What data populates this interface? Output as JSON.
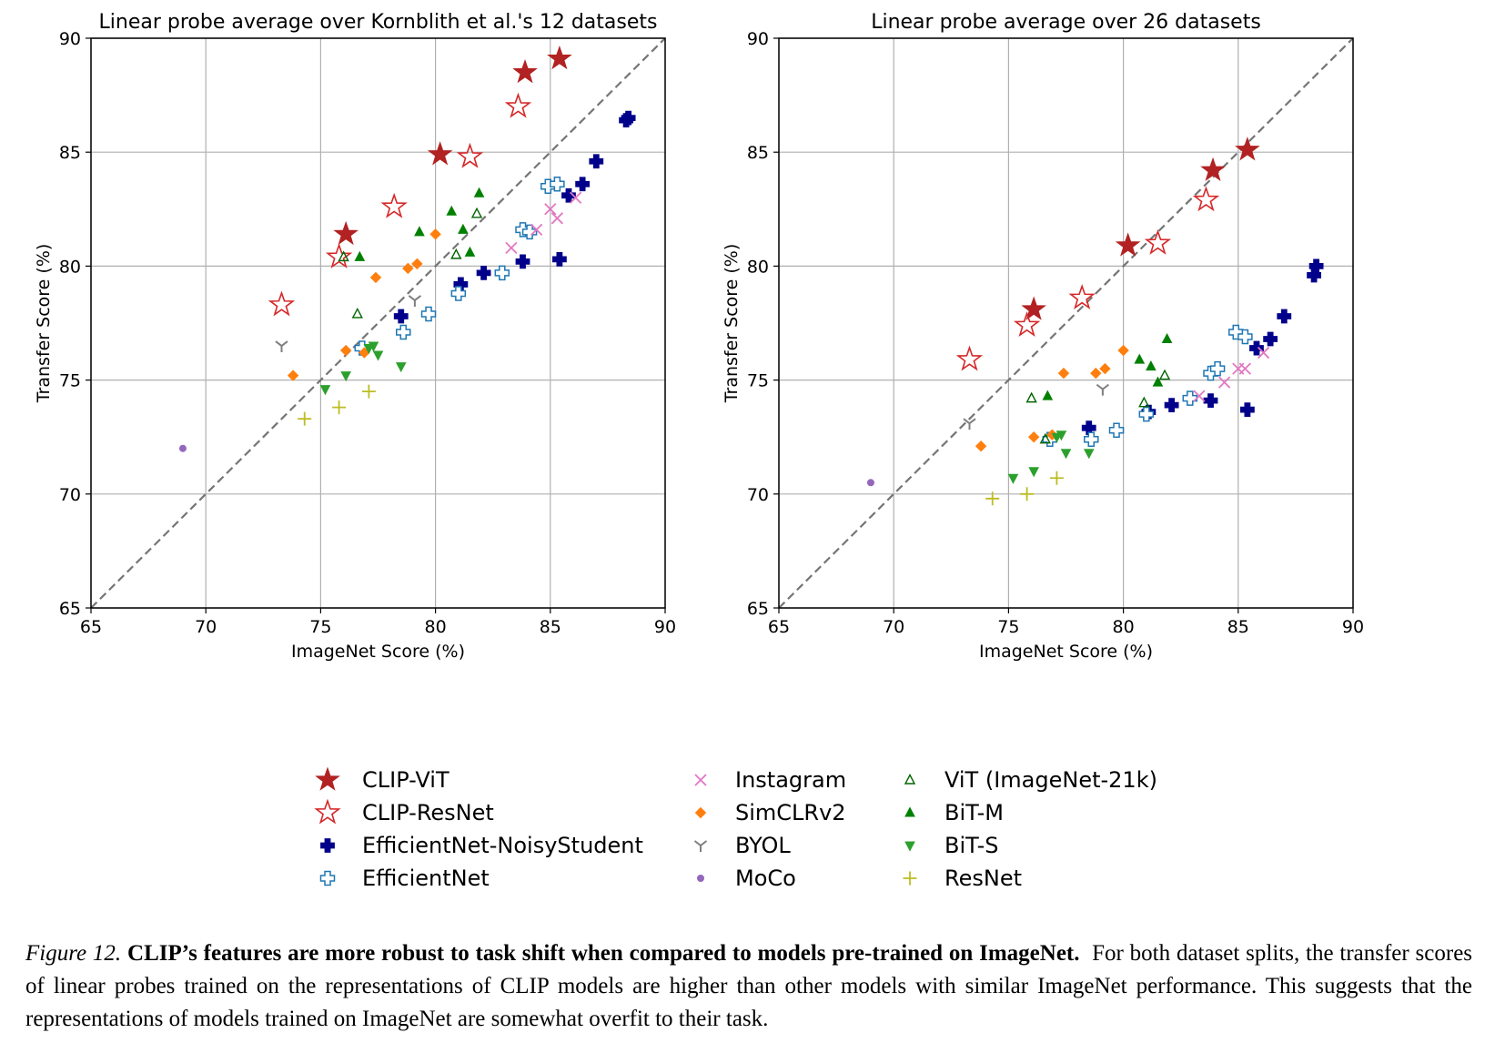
{
  "chart_data": [
    {
      "type": "scatter",
      "title": "Linear probe average over Kornblith et al.'s 12 datasets",
      "xlabel": "ImageNet Score (%)",
      "ylabel": "Transfer Score (%)",
      "xlim": [
        65,
        90
      ],
      "ylim": [
        65,
        90
      ],
      "xticks": [
        "65",
        "70",
        "75",
        "80",
        "85",
        "90"
      ],
      "yticks": [
        "65",
        "70",
        "75",
        "80",
        "85",
        "90"
      ],
      "grid": true,
      "reference_line": "y = x (dashed)",
      "series": [
        {
          "name": "CLIP-ViT",
          "points": [
            [
              76.1,
              81.4
            ],
            [
              80.2,
              84.9
            ],
            [
              83.9,
              88.5
            ],
            [
              85.4,
              89.1
            ]
          ]
        },
        {
          "name": "CLIP-ResNet",
          "points": [
            [
              73.3,
              78.3
            ],
            [
              75.8,
              80.4
            ],
            [
              78.2,
              82.6
            ],
            [
              81.5,
              84.8
            ],
            [
              83.6,
              87.0
            ]
          ]
        },
        {
          "name": "EfficientNet-NoisyStudent",
          "points": [
            [
              78.5,
              77.8
            ],
            [
              81.1,
              79.2
            ],
            [
              82.1,
              79.7
            ],
            [
              83.8,
              80.2
            ],
            [
              85.4,
              80.3
            ],
            [
              85.8,
              83.1
            ],
            [
              86.4,
              83.6
            ],
            [
              87.0,
              84.6
            ],
            [
              88.3,
              86.4
            ],
            [
              88.4,
              86.5
            ]
          ]
        },
        {
          "name": "EfficientNet",
          "points": [
            [
              76.8,
              76.4
            ],
            [
              78.6,
              77.1
            ],
            [
              79.7,
              77.9
            ],
            [
              81.0,
              78.8
            ],
            [
              82.9,
              79.7
            ],
            [
              83.8,
              81.6
            ],
            [
              84.1,
              81.5
            ],
            [
              84.9,
              83.5
            ],
            [
              85.3,
              83.6
            ]
          ]
        },
        {
          "name": "Instagram",
          "points": [
            [
              83.3,
              80.8
            ],
            [
              84.4,
              81.6
            ],
            [
              85.0,
              82.5
            ],
            [
              85.3,
              82.1
            ],
            [
              86.1,
              83.0
            ]
          ]
        },
        {
          "name": "SimCLRv2",
          "points": [
            [
              73.8,
              75.2
            ],
            [
              76.1,
              76.3
            ],
            [
              76.9,
              76.2
            ],
            [
              77.4,
              79.5
            ],
            [
              78.8,
              79.9
            ],
            [
              79.2,
              80.1
            ],
            [
              80.0,
              81.4
            ]
          ]
        },
        {
          "name": "BYOL",
          "points": [
            [
              73.3,
              76.5
            ],
            [
              79.1,
              78.5
            ]
          ]
        },
        {
          "name": "MoCo",
          "points": [
            [
              69.0,
              72.0
            ]
          ]
        },
        {
          "name": "ViT (ImageNet-21k)",
          "points": [
            [
              76.0,
              80.4
            ],
            [
              76.6,
              77.9
            ],
            [
              80.9,
              80.5
            ],
            [
              81.8,
              82.3
            ]
          ]
        },
        {
          "name": "BiT-M",
          "points": [
            [
              76.7,
              80.4
            ],
            [
              79.3,
              81.5
            ],
            [
              80.7,
              82.4
            ],
            [
              81.2,
              81.6
            ],
            [
              81.5,
              80.6
            ],
            [
              81.9,
              83.2
            ]
          ]
        },
        {
          "name": "BiT-S",
          "points": [
            [
              75.2,
              74.6
            ],
            [
              76.1,
              75.2
            ],
            [
              77.1,
              76.4
            ],
            [
              77.3,
              76.5
            ],
            [
              77.5,
              76.1
            ],
            [
              78.5,
              75.6
            ]
          ]
        },
        {
          "name": "ResNet",
          "points": [
            [
              74.3,
              73.3
            ],
            [
              75.8,
              73.8
            ],
            [
              77.1,
              74.5
            ]
          ]
        }
      ]
    },
    {
      "type": "scatter",
      "title": "Linear probe average over 26 datasets",
      "xlabel": "ImageNet Score (%)",
      "ylabel": "Transfer Score (%)",
      "xlim": [
        65,
        90
      ],
      "ylim": [
        65,
        90
      ],
      "xticks": [
        "65",
        "70",
        "75",
        "80",
        "85",
        "90"
      ],
      "yticks": [
        "65",
        "70",
        "75",
        "80",
        "85",
        "90"
      ],
      "grid": true,
      "reference_line": "y = x (dashed)",
      "series": [
        {
          "name": "CLIP-ViT",
          "points": [
            [
              76.1,
              78.1
            ],
            [
              80.2,
              80.9
            ],
            [
              83.9,
              84.2
            ],
            [
              85.4,
              85.1
            ]
          ]
        },
        {
          "name": "CLIP-ResNet",
          "points": [
            [
              73.3,
              75.9
            ],
            [
              75.8,
              77.4
            ],
            [
              78.2,
              78.6
            ],
            [
              81.5,
              81.0
            ],
            [
              83.6,
              82.9
            ]
          ]
        },
        {
          "name": "EfficientNet-NoisyStudent",
          "points": [
            [
              78.5,
              72.9
            ],
            [
              81.1,
              73.6
            ],
            [
              82.1,
              73.9
            ],
            [
              83.8,
              74.1
            ],
            [
              85.4,
              73.7
            ],
            [
              85.8,
              76.4
            ],
            [
              86.4,
              76.8
            ],
            [
              87.0,
              77.8
            ],
            [
              88.3,
              79.6
            ],
            [
              88.4,
              80.0
            ]
          ]
        },
        {
          "name": "EfficientNet",
          "points": [
            [
              76.8,
              72.4
            ],
            [
              78.6,
              72.4
            ],
            [
              79.7,
              72.8
            ],
            [
              81.0,
              73.5
            ],
            [
              82.9,
              74.2
            ],
            [
              83.8,
              75.3
            ],
            [
              84.1,
              75.5
            ],
            [
              84.9,
              77.1
            ],
            [
              85.3,
              76.9
            ]
          ]
        },
        {
          "name": "Instagram",
          "points": [
            [
              83.3,
              74.3
            ],
            [
              84.4,
              74.9
            ],
            [
              85.0,
              75.5
            ],
            [
              85.3,
              75.5
            ],
            [
              86.1,
              76.2
            ]
          ]
        },
        {
          "name": "SimCLRv2",
          "points": [
            [
              73.8,
              72.1
            ],
            [
              76.1,
              72.5
            ],
            [
              76.9,
              72.6
            ],
            [
              77.4,
              75.3
            ],
            [
              78.8,
              75.3
            ],
            [
              79.2,
              75.5
            ],
            [
              80.0,
              76.3
            ]
          ]
        },
        {
          "name": "BYOL",
          "points": [
            [
              73.3,
              73.1
            ],
            [
              79.1,
              74.6
            ]
          ]
        },
        {
          "name": "MoCo",
          "points": [
            [
              69.0,
              70.5
            ]
          ]
        },
        {
          "name": "ViT (ImageNet-21k)",
          "points": [
            [
              76.0,
              74.2
            ],
            [
              76.6,
              72.4
            ],
            [
              80.9,
              74.0
            ],
            [
              81.8,
              75.2
            ]
          ]
        },
        {
          "name": "BiT-M",
          "points": [
            [
              76.7,
              74.3
            ],
            [
              80.7,
              75.9
            ],
            [
              81.2,
              75.6
            ],
            [
              81.5,
              74.9
            ],
            [
              81.9,
              76.8
            ]
          ]
        },
        {
          "name": "BiT-S",
          "points": [
            [
              75.2,
              70.7
            ],
            [
              76.1,
              71.0
            ],
            [
              77.1,
              72.5
            ],
            [
              77.3,
              72.6
            ],
            [
              77.5,
              71.8
            ],
            [
              78.5,
              71.8
            ]
          ]
        },
        {
          "name": "ResNet",
          "points": [
            [
              74.3,
              69.8
            ],
            [
              75.8,
              70.0
            ],
            [
              77.1,
              70.7
            ]
          ]
        }
      ]
    }
  ],
  "legend": {
    "items": [
      {
        "name": "CLIP-ViT",
        "color": "#b22222",
        "marker": "star-filled"
      },
      {
        "name": "CLIP-ResNet",
        "color": "#d62728",
        "marker": "star-open"
      },
      {
        "name": "EfficientNet-NoisyStudent",
        "color": "#00008b",
        "marker": "plus-filled"
      },
      {
        "name": "EfficientNet",
        "color": "#1f77b4",
        "marker": "plus-open"
      },
      {
        "name": "Instagram",
        "color": "#e377c2",
        "marker": "x"
      },
      {
        "name": "SimCLRv2",
        "color": "#ff7f0e",
        "marker": "diamond"
      },
      {
        "name": "BYOL",
        "color": "#7f7f7f",
        "marker": "tri-down"
      },
      {
        "name": "MoCo",
        "color": "#9467bd",
        "marker": "dot"
      },
      {
        "name": "ViT (ImageNet-21k)",
        "color": "#006400",
        "marker": "triangle-open"
      },
      {
        "name": "BiT-M",
        "color": "#008000",
        "marker": "triangle-up"
      },
      {
        "name": "BiT-S",
        "color": "#2ca02c",
        "marker": "triangle-down"
      },
      {
        "name": "ResNet",
        "color": "#bcbd22",
        "marker": "thin-plus"
      }
    ]
  },
  "caption": {
    "label": "Figure 12.",
    "bold": "CLIP’s features are more robust to task shift when compared to models pre-trained on ImageNet.",
    "text": "For both dataset splits, the transfer scores of linear probes trained on the representations of CLIP models are higher than other models with similar ImageNet performance. This suggests that the representations of models trained on ImageNet are somewhat overfit to their task."
  }
}
